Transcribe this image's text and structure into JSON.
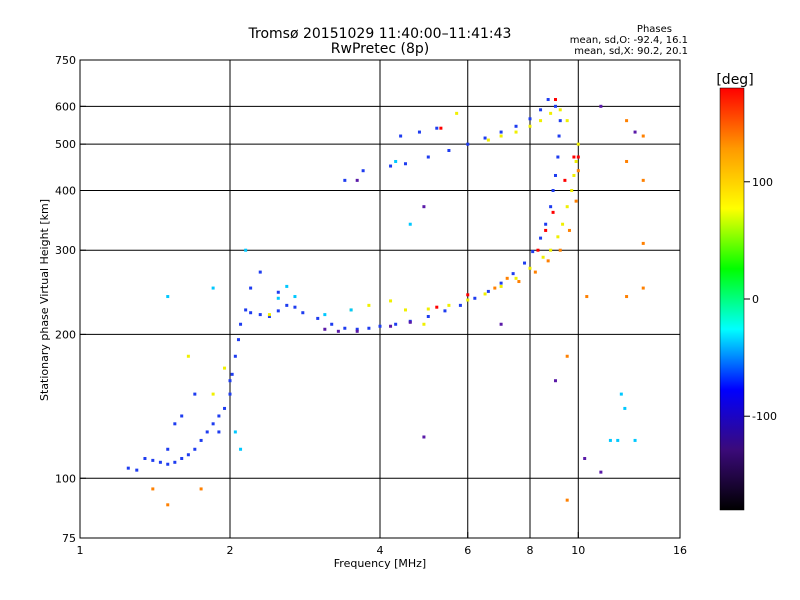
{
  "title_line1": "Tromsø 20151029 11:40:00–11:41:43",
  "title_line2": "RwPretec (8p)",
  "phases": {
    "header": "Phases",
    "line1": "mean, sd,O: -92.4, 16.1",
    "line2": "mean, sd,X: 90.2, 20.1"
  },
  "chart_data": {
    "type": "scatter",
    "xlabel": "Frequency [MHz]",
    "ylabel": "Stationary phase Virtual Height [km]",
    "x_scale": "log",
    "y_scale": "log",
    "xlim": [
      1,
      16
    ],
    "ylim": [
      75,
      750
    ],
    "x_ticks": [
      1,
      2,
      4,
      6,
      8,
      10,
      16
    ],
    "y_ticks": [
      75,
      100,
      200,
      300,
      400,
      500,
      600,
      750
    ],
    "x_grid": [
      2,
      4,
      6,
      8,
      10
    ],
    "y_grid": [
      100,
      200,
      300,
      400,
      500,
      600
    ],
    "colorbar": {
      "label": "[deg]",
      "range": [
        -180,
        180
      ],
      "ticks": [
        -100,
        0,
        100
      ],
      "colors": [
        "#000000",
        "#3b0a7a",
        "#0000ff",
        "#00ffff",
        "#00ff00",
        "#ffff00",
        "#ff9900",
        "#ff0000"
      ]
    },
    "series": [
      {
        "phase_mode": "O",
        "color": "#1e3cf0",
        "points": [
          [
            1.25,
            105
          ],
          [
            1.3,
            104
          ],
          [
            1.35,
            110
          ],
          [
            1.4,
            109
          ],
          [
            1.45,
            108
          ],
          [
            1.5,
            107
          ],
          [
            1.55,
            108
          ],
          [
            1.6,
            110
          ],
          [
            1.65,
            112
          ],
          [
            1.7,
            115
          ],
          [
            1.75,
            120
          ],
          [
            1.8,
            125
          ],
          [
            1.85,
            130
          ],
          [
            1.9,
            135
          ],
          [
            1.95,
            140
          ],
          [
            2.0,
            150
          ],
          [
            2.02,
            165
          ],
          [
            2.05,
            180
          ],
          [
            2.08,
            195
          ],
          [
            2.1,
            210
          ],
          [
            2.15,
            225
          ],
          [
            2.2,
            222
          ],
          [
            2.3,
            220
          ],
          [
            2.4,
            218
          ],
          [
            2.5,
            224
          ],
          [
            2.6,
            230
          ],
          [
            2.7,
            228
          ],
          [
            2.8,
            222
          ],
          [
            3.0,
            216
          ],
          [
            3.2,
            210
          ],
          [
            3.4,
            206
          ],
          [
            3.6,
            205
          ],
          [
            3.8,
            206
          ],
          [
            4.0,
            208
          ],
          [
            4.3,
            210
          ],
          [
            4.6,
            213
          ],
          [
            5.0,
            218
          ],
          [
            5.4,
            224
          ],
          [
            5.8,
            230
          ],
          [
            6.2,
            238
          ],
          [
            6.6,
            246
          ],
          [
            7.0,
            256
          ],
          [
            7.4,
            268
          ],
          [
            7.8,
            282
          ],
          [
            8.1,
            298
          ],
          [
            8.4,
            318
          ],
          [
            8.6,
            340
          ],
          [
            8.8,
            370
          ],
          [
            8.9,
            400
          ],
          [
            9.0,
            430
          ],
          [
            9.1,
            470
          ],
          [
            9.15,
            520
          ],
          [
            9.2,
            560
          ],
          [
            9.0,
            600
          ],
          [
            8.7,
            620
          ],
          [
            8.4,
            590
          ],
          [
            8.0,
            565
          ],
          [
            7.5,
            545
          ],
          [
            7.0,
            530
          ],
          [
            6.5,
            515
          ],
          [
            6.0,
            500
          ],
          [
            5.5,
            485
          ],
          [
            5.0,
            470
          ],
          [
            4.5,
            455
          ],
          [
            4.2,
            450
          ],
          [
            3.7,
            440
          ],
          [
            3.4,
            420
          ],
          [
            1.5,
            115
          ],
          [
            1.6,
            135
          ],
          [
            1.7,
            150
          ],
          [
            1.9,
            125
          ],
          [
            2.0,
            160
          ],
          [
            1.55,
            130
          ],
          [
            2.2,
            250
          ],
          [
            2.3,
            270
          ],
          [
            2.5,
            245
          ],
          [
            4.8,
            530
          ],
          [
            5.2,
            540
          ],
          [
            4.4,
            520
          ]
        ]
      },
      {
        "phase_mode": "X",
        "color": "#f0f000",
        "points": [
          [
            4.5,
            225
          ],
          [
            5.0,
            226
          ],
          [
            5.5,
            230
          ],
          [
            6.0,
            236
          ],
          [
            6.5,
            243
          ],
          [
            7.0,
            252
          ],
          [
            7.5,
            262
          ],
          [
            8.0,
            275
          ],
          [
            8.5,
            290
          ],
          [
            8.8,
            300
          ],
          [
            9.1,
            320
          ],
          [
            9.3,
            340
          ],
          [
            9.5,
            370
          ],
          [
            9.7,
            400
          ],
          [
            9.8,
            430
          ],
          [
            9.9,
            460
          ],
          [
            10.0,
            500
          ],
          [
            9.5,
            560
          ],
          [
            9.2,
            590
          ],
          [
            8.8,
            580
          ],
          [
            8.4,
            560
          ],
          [
            8.0,
            545
          ],
          [
            7.5,
            530
          ],
          [
            7.0,
            520
          ],
          [
            6.6,
            510
          ],
          [
            3.8,
            230
          ],
          [
            4.2,
            235
          ],
          [
            3.5,
            225
          ],
          [
            5.7,
            580
          ],
          [
            2.4,
            220
          ],
          [
            4.9,
            210
          ],
          [
            1.65,
            180
          ],
          [
            1.85,
            150
          ],
          [
            1.95,
            170
          ]
        ]
      },
      {
        "phase_mode": "other",
        "color": "#ff8000",
        "points": [
          [
            10.0,
            440
          ],
          [
            9.9,
            380
          ],
          [
            9.6,
            330
          ],
          [
            9.2,
            300
          ],
          [
            8.7,
            285
          ],
          [
            8.2,
            270
          ],
          [
            7.6,
            258
          ],
          [
            7.2,
            262
          ],
          [
            6.8,
            250
          ],
          [
            12.5,
            560
          ],
          [
            12.5,
            460
          ],
          [
            13.5,
            520
          ],
          [
            13.5,
            420
          ],
          [
            13.5,
            310
          ],
          [
            13.5,
            250
          ],
          [
            12.5,
            240
          ],
          [
            10.4,
            240
          ],
          [
            9.5,
            180
          ],
          [
            9.5,
            90
          ],
          [
            1.5,
            88
          ],
          [
            1.4,
            95
          ],
          [
            1.75,
            95
          ]
        ]
      },
      {
        "phase_mode": "other",
        "color": "#ff0000",
        "points": [
          [
            8.3,
            300
          ],
          [
            8.6,
            330
          ],
          [
            8.9,
            360
          ],
          [
            9.4,
            420
          ],
          [
            9.8,
            470
          ],
          [
            10.0,
            470
          ],
          [
            6.0,
            242
          ],
          [
            5.2,
            228
          ],
          [
            5.3,
            540
          ],
          [
            9.0,
            620
          ]
        ]
      },
      {
        "phase_mode": "other",
        "color": "#00c8ff",
        "points": [
          [
            2.15,
            300
          ],
          [
            2.5,
            238
          ],
          [
            2.6,
            252
          ],
          [
            2.7,
            240
          ],
          [
            4.6,
            340
          ],
          [
            12.2,
            150
          ],
          [
            12.0,
            120
          ],
          [
            11.6,
            120
          ],
          [
            13.0,
            120
          ],
          [
            12.4,
            140
          ],
          [
            1.5,
            240
          ],
          [
            1.85,
            250
          ],
          [
            2.05,
            125
          ],
          [
            2.1,
            115
          ],
          [
            3.1,
            220
          ],
          [
            3.5,
            225
          ],
          [
            4.3,
            460
          ]
        ]
      },
      {
        "phase_mode": "other",
        "color": "#5a1aa8",
        "points": [
          [
            3.1,
            205
          ],
          [
            3.3,
            203
          ],
          [
            3.6,
            203
          ],
          [
            4.2,
            208
          ],
          [
            4.6,
            212
          ],
          [
            4.9,
            122
          ],
          [
            9.0,
            160
          ],
          [
            11.1,
            103
          ],
          [
            11.1,
            600
          ],
          [
            10.3,
            110
          ],
          [
            13.0,
            530
          ],
          [
            3.6,
            420
          ],
          [
            4.9,
            370
          ],
          [
            7.0,
            210
          ]
        ]
      }
    ]
  }
}
